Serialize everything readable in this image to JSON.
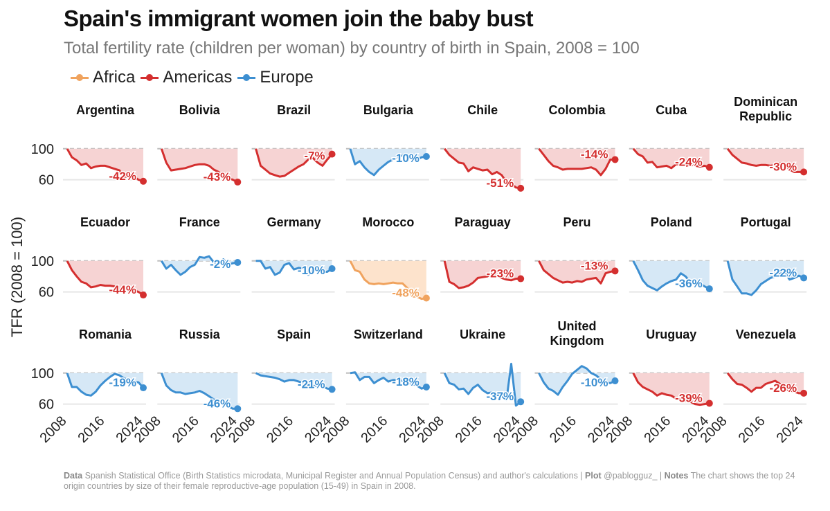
{
  "title": "Spain's immigrant women join the baby bust",
  "subtitle": "Total fertility rate (children per woman) by country of birth in Spain, 2008 = 100",
  "colors": {
    "Africa": "#f0a35e",
    "Americas": "#d42f2f",
    "Europe": "#3d8fd1"
  },
  "legend": [
    {
      "label": "Africa",
      "color": "#f0a35e"
    },
    {
      "label": "Americas",
      "color": "#d42f2f"
    },
    {
      "label": "Europe",
      "color": "#3d8fd1"
    }
  ],
  "footer": {
    "data_label": "Data",
    "data_text": "Spanish Statistical Office (Birth Statistics microdata, Municipal Register and Annual Population Census) and author's calculations | ",
    "plot_label": "Plot",
    "plot_text": "@pablogguz_ | ",
    "notes_label": "Notes",
    "notes_text": "The chart shows the top 24 origin countries by size of their female reproductive-age population (15-49) in Spain in 2008."
  },
  "chart_data": {
    "type": "area",
    "ylabel": "TFR (2008 = 100)",
    "x_ticks": [
      "2008",
      "2016",
      "2024"
    ],
    "y_ticks": [
      60,
      100
    ],
    "baseline": 100,
    "ylim": [
      48,
      115
    ],
    "xlim": [
      2008,
      2024
    ],
    "panels": [
      {
        "country": [
          "Argentina"
        ],
        "region": "Americas",
        "change_label": "-42%",
        "values": [
          100,
          89,
          85,
          79,
          81,
          75,
          77,
          78,
          78,
          76,
          74,
          72,
          62,
          66,
          64,
          60,
          58
        ]
      },
      {
        "country": [
          "Bolivia"
        ],
        "region": "Americas",
        "change_label": "-43%",
        "values": [
          100,
          82,
          72,
          73,
          74,
          75,
          77,
          79,
          80,
          80,
          78,
          73,
          70,
          64,
          62,
          60,
          57
        ]
      },
      {
        "country": [
          "Brazil"
        ],
        "region": "Americas",
        "change_label": "-7%",
        "values": [
          100,
          78,
          73,
          68,
          66,
          64,
          65,
          69,
          73,
          77,
          80,
          86,
          88,
          82,
          78,
          86,
          93
        ]
      },
      {
        "country": [
          "Bulgaria"
        ],
        "region": "Europe",
        "change_label": "-10%",
        "values": [
          100,
          80,
          84,
          76,
          70,
          66,
          73,
          78,
          83,
          86,
          90,
          91,
          90,
          88,
          86,
          89,
          90
        ]
      },
      {
        "country": [
          "Chile"
        ],
        "region": "Americas",
        "change_label": "-51%",
        "values": [
          100,
          92,
          87,
          82,
          81,
          71,
          76,
          74,
          72,
          73,
          67,
          70,
          66,
          57,
          55,
          50,
          49
        ]
      },
      {
        "country": [
          "Colombia"
        ],
        "region": "Americas",
        "change_label": "-14%",
        "values": [
          100,
          92,
          84,
          78,
          76,
          73,
          74,
          74,
          74,
          74,
          75,
          76,
          73,
          66,
          74,
          86,
          86
        ]
      },
      {
        "country": [
          "Cuba"
        ],
        "region": "Americas",
        "change_label": "-24%",
        "values": [
          100,
          93,
          90,
          82,
          83,
          76,
          77,
          78,
          75,
          80,
          80,
          78,
          79,
          78,
          77,
          78,
          76
        ]
      },
      {
        "country": [
          "Dominican",
          "Republic"
        ],
        "region": "Americas",
        "change_label": "-30%",
        "values": [
          100,
          92,
          87,
          82,
          81,
          79,
          78,
          79,
          79,
          78,
          79,
          81,
          80,
          73,
          70,
          70,
          70
        ]
      },
      {
        "country": [
          "Ecuador"
        ],
        "region": "Americas",
        "change_label": "-44%",
        "values": [
          100,
          88,
          80,
          73,
          71,
          66,
          67,
          69,
          68,
          68,
          67,
          62,
          61,
          65,
          62,
          60,
          56
        ]
      },
      {
        "country": [
          "France"
        ],
        "region": "Europe",
        "change_label": "-2%",
        "values": [
          100,
          90,
          95,
          88,
          82,
          86,
          92,
          95,
          105,
          104,
          106,
          98,
          96,
          102,
          95,
          97,
          98
        ]
      },
      {
        "country": [
          "Germany"
        ],
        "region": "Europe",
        "change_label": "-10%",
        "values": [
          100,
          100,
          90,
          92,
          82,
          85,
          95,
          97,
          89,
          91,
          90,
          82,
          88,
          88,
          86,
          86,
          90
        ]
      },
      {
        "country": [
          "Morocco"
        ],
        "region": "Africa",
        "change_label": "-48%",
        "values": [
          100,
          88,
          86,
          76,
          71,
          70,
          71,
          70,
          71,
          72,
          71,
          71,
          65,
          54,
          54,
          51,
          52
        ]
      },
      {
        "country": [
          "Paraguay"
        ],
        "region": "Americas",
        "change_label": "-23%",
        "values": [
          100,
          73,
          70,
          65,
          66,
          68,
          72,
          78,
          79,
          80,
          85,
          81,
          78,
          76,
          75,
          77,
          77
        ]
      },
      {
        "country": [
          "Peru"
        ],
        "region": "Americas",
        "change_label": "-13%",
        "values": [
          100,
          88,
          83,
          78,
          75,
          72,
          73,
          72,
          74,
          73,
          76,
          77,
          78,
          71,
          84,
          86,
          87
        ]
      },
      {
        "country": [
          "Poland"
        ],
        "region": "Europe",
        "change_label": "-36%",
        "values": [
          100,
          88,
          75,
          68,
          65,
          62,
          67,
          71,
          74,
          76,
          84,
          80,
          72,
          72,
          71,
          67,
          64
        ]
      },
      {
        "country": [
          "Portugal"
        ],
        "region": "Europe",
        "change_label": "-22%",
        "values": [
          100,
          76,
          67,
          58,
          58,
          56,
          62,
          70,
          74,
          78,
          80,
          83,
          86,
          76,
          78,
          81,
          78
        ]
      },
      {
        "country": [
          "Romania"
        ],
        "region": "Europe",
        "change_label": "-19%",
        "values": [
          100,
          82,
          82,
          76,
          72,
          71,
          76,
          84,
          90,
          95,
          99,
          97,
          93,
          91,
          89,
          88,
          81
        ]
      },
      {
        "country": [
          "Russia"
        ],
        "region": "Europe",
        "change_label": "-46%",
        "values": [
          100,
          84,
          78,
          75,
          75,
          73,
          74,
          75,
          77,
          74,
          70,
          66,
          62,
          59,
          57,
          54,
          54
        ]
      },
      {
        "country": [
          "Spain"
        ],
        "region": "Europe",
        "change_label": "-21%",
        "values": [
          100,
          97,
          96,
          95,
          94,
          92,
          89,
          91,
          91,
          89,
          87,
          85,
          83,
          84,
          83,
          80,
          79
        ]
      },
      {
        "country": [
          "Switzerland"
        ],
        "region": "Europe",
        "change_label": "-18%",
        "values": [
          100,
          101,
          91,
          95,
          95,
          87,
          91,
          94,
          89,
          91,
          91,
          90,
          88,
          86,
          84,
          80,
          82
        ]
      },
      {
        "country": [
          "Ukraine"
        ],
        "region": "Europe",
        "change_label": "-37%",
        "values": [
          100,
          87,
          85,
          79,
          80,
          73,
          81,
          85,
          78,
          74,
          75,
          72,
          71,
          65,
          112,
          58,
          63
        ]
      },
      {
        "country": [
          "United",
          "Kingdom"
        ],
        "region": "Europe",
        "change_label": "-10%",
        "values": [
          100,
          88,
          80,
          77,
          72,
          82,
          90,
          99,
          104,
          109,
          106,
          100,
          97,
          92,
          88,
          87,
          90
        ]
      },
      {
        "country": [
          "Uruguay"
        ],
        "region": "Americas",
        "change_label": "-39%",
        "values": [
          100,
          88,
          82,
          79,
          76,
          71,
          74,
          72,
          71,
          67,
          66,
          64,
          63,
          60,
          59,
          60,
          61
        ]
      },
      {
        "country": [
          "Venezuela"
        ],
        "region": "Americas",
        "change_label": "-26%",
        "values": [
          100,
          92,
          86,
          85,
          81,
          76,
          81,
          81,
          86,
          88,
          90,
          86,
          80,
          78,
          76,
          74,
          74
        ]
      }
    ]
  }
}
